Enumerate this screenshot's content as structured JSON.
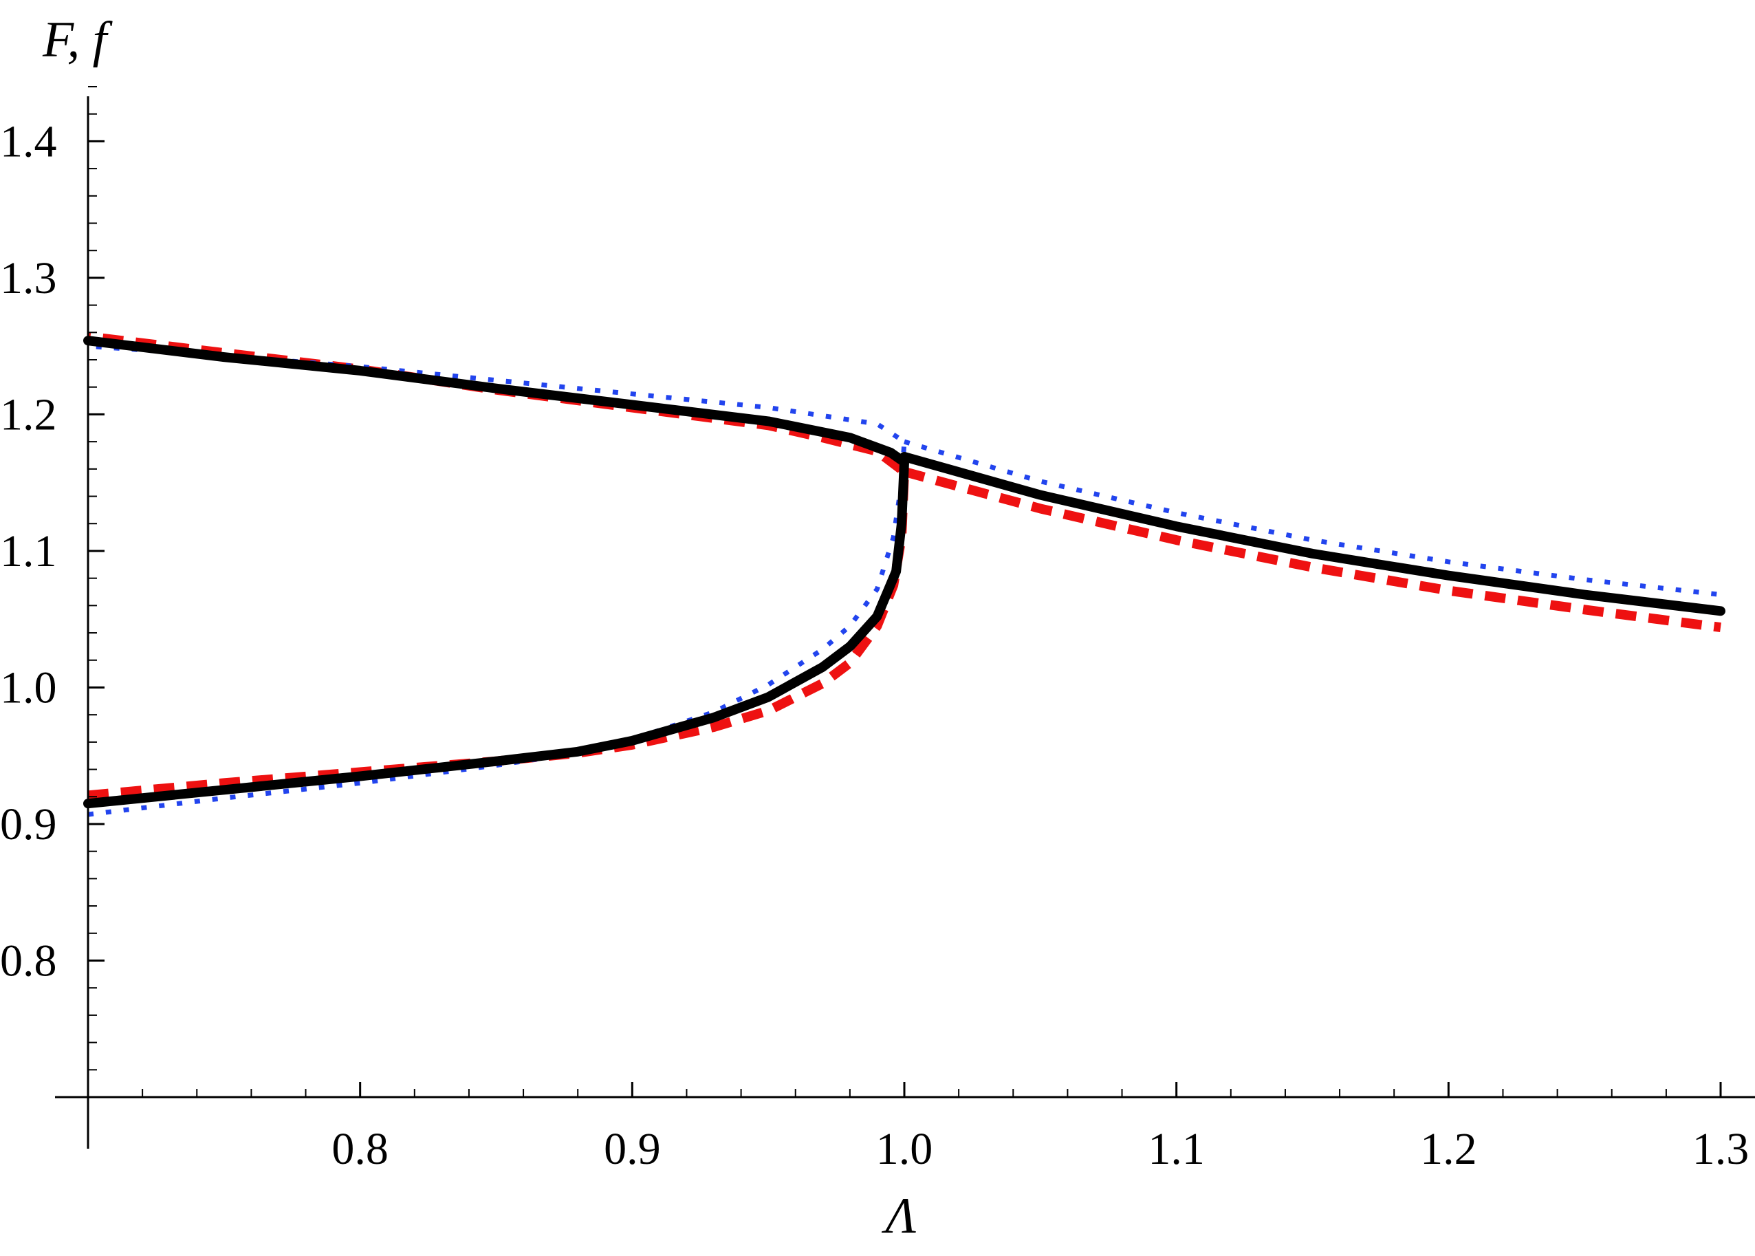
{
  "chart_data": {
    "type": "line",
    "xlabel": "Λ",
    "ylabel": "F, f",
    "xlim": [
      0.7,
      1.3
    ],
    "ylim": [
      0.7,
      1.44
    ],
    "x_ticks": [
      "0.8",
      "0.9",
      "1.0",
      "1.1",
      "1.2",
      "1.3"
    ],
    "y_ticks": [
      "0.8",
      "0.9",
      "1.0",
      "1.1",
      "1.2",
      "1.3",
      "1.4"
    ],
    "grid": false,
    "series": [
      {
        "style": "solid",
        "color": "#000000",
        "points": [
          [
            0.7,
            0.915
          ],
          [
            0.75,
            0.925
          ],
          [
            0.8,
            0.935
          ],
          [
            0.85,
            0.946
          ],
          [
            0.88,
            0.953
          ],
          [
            0.9,
            0.961
          ],
          [
            0.93,
            0.978
          ],
          [
            0.95,
            0.993
          ],
          [
            0.97,
            1.015
          ],
          [
            0.98,
            1.03
          ],
          [
            0.99,
            1.052
          ],
          [
            0.997,
            1.085
          ],
          [
            0.999,
            1.12
          ],
          [
            1.0,
            1.165
          ],
          [
            0.995,
            1.172
          ],
          [
            0.98,
            1.183
          ],
          [
            0.95,
            1.195
          ],
          [
            0.9,
            1.207
          ],
          [
            0.85,
            1.219
          ],
          [
            0.8,
            1.232
          ],
          [
            0.75,
            1.242
          ],
          [
            0.7,
            1.254
          ]
        ]
      },
      {
        "style": "solid",
        "color": "#000000",
        "points": [
          [
            1.0,
            1.169
          ],
          [
            1.05,
            1.141
          ],
          [
            1.1,
            1.118
          ],
          [
            1.15,
            1.098
          ],
          [
            1.2,
            1.082
          ],
          [
            1.25,
            1.068
          ],
          [
            1.3,
            1.056
          ]
        ]
      },
      {
        "style": "dashed",
        "color": "#ee1111",
        "points": [
          [
            0.7,
            0.921
          ],
          [
            0.75,
            0.93
          ],
          [
            0.8,
            0.938
          ],
          [
            0.85,
            0.946
          ],
          [
            0.88,
            0.952
          ],
          [
            0.9,
            0.958
          ],
          [
            0.93,
            0.971
          ],
          [
            0.95,
            0.983
          ],
          [
            0.97,
            1.003
          ],
          [
            0.98,
            1.018
          ],
          [
            0.99,
            1.045
          ],
          [
            0.996,
            1.075
          ],
          [
            0.999,
            1.11
          ],
          [
            1.0,
            1.158
          ],
          [
            0.99,
            1.173
          ],
          [
            0.97,
            1.183
          ],
          [
            0.95,
            1.192
          ],
          [
            0.9,
            1.205
          ],
          [
            0.85,
            1.218
          ],
          [
            0.8,
            1.233
          ],
          [
            0.75,
            1.245
          ],
          [
            0.7,
            1.257
          ]
        ]
      },
      {
        "style": "dashed",
        "color": "#ee1111",
        "points": [
          [
            1.0,
            1.158
          ],
          [
            1.05,
            1.131
          ],
          [
            1.1,
            1.108
          ],
          [
            1.15,
            1.088
          ],
          [
            1.2,
            1.071
          ],
          [
            1.25,
            1.057
          ],
          [
            1.3,
            1.044
          ]
        ]
      },
      {
        "style": "dotted",
        "color": "#2244ee",
        "points": [
          [
            0.7,
            0.907
          ],
          [
            0.75,
            0.919
          ],
          [
            0.8,
            0.93
          ],
          [
            0.85,
            0.943
          ],
          [
            0.88,
            0.952
          ],
          [
            0.9,
            0.962
          ],
          [
            0.93,
            0.982
          ],
          [
            0.95,
            1.002
          ],
          [
            0.97,
            1.028
          ],
          [
            0.98,
            1.045
          ],
          [
            0.99,
            1.072
          ],
          [
            0.996,
            1.11
          ],
          [
            0.999,
            1.15
          ],
          [
            1.0,
            1.18
          ],
          [
            0.99,
            1.193
          ],
          [
            0.95,
            1.205
          ],
          [
            0.9,
            1.215
          ],
          [
            0.85,
            1.225
          ],
          [
            0.8,
            1.235
          ],
          [
            0.75,
            1.243
          ],
          [
            0.7,
            1.25
          ]
        ]
      },
      {
        "style": "dotted",
        "color": "#2244ee",
        "points": [
          [
            1.0,
            1.18
          ],
          [
            1.05,
            1.151
          ],
          [
            1.1,
            1.128
          ],
          [
            1.15,
            1.108
          ],
          [
            1.2,
            1.092
          ],
          [
            1.25,
            1.079
          ],
          [
            1.3,
            1.068
          ]
        ]
      }
    ]
  }
}
